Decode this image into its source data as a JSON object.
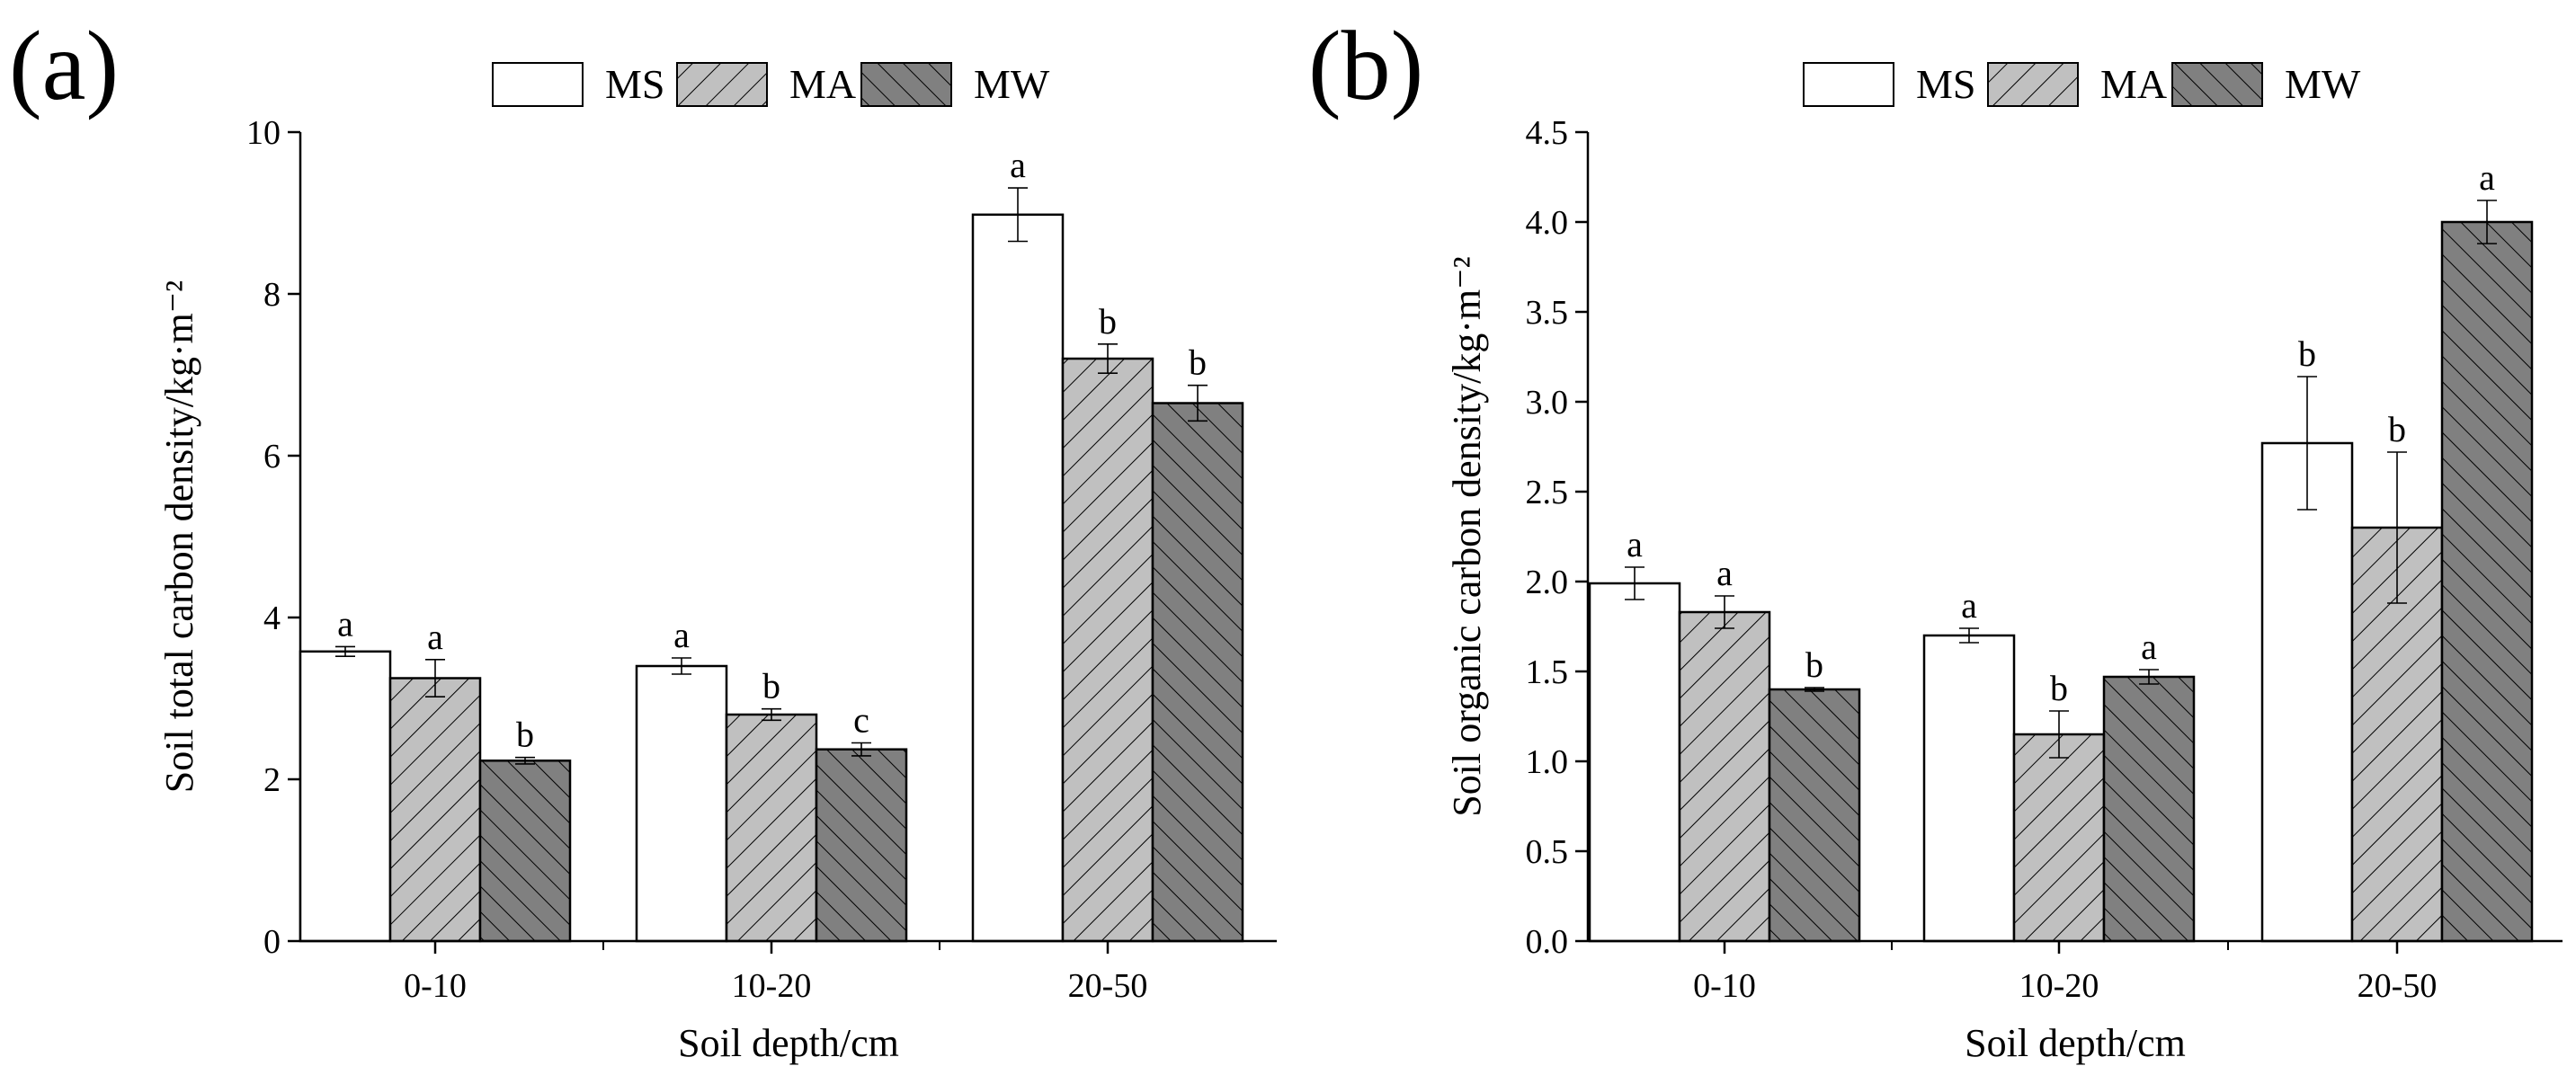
{
  "chart_data": [
    {
      "panel_label": "(a)",
      "type": "bar",
      "categories": [
        "0-10",
        "10-20",
        "20-50"
      ],
      "series": [
        {
          "name": "MS",
          "values": [
            3.58,
            3.4,
            8.98
          ],
          "errors": [
            0.06,
            0.1,
            0.33
          ],
          "labels": [
            "a",
            "a",
            "a"
          ]
        },
        {
          "name": "MA",
          "values": [
            3.25,
            2.8,
            7.2
          ],
          "errors": [
            0.23,
            0.07,
            0.18
          ],
          "labels": [
            "a",
            "b",
            "b"
          ]
        },
        {
          "name": "MW",
          "values": [
            2.23,
            2.37,
            6.65
          ],
          "errors": [
            0.04,
            0.08,
            0.22
          ],
          "labels": [
            "b",
            "c",
            "b"
          ]
        }
      ],
      "xlabel": "Soil depth/cm",
      "ylabel": "Soil total carbon density/kg·m⁻²",
      "ylim": [
        0,
        10
      ],
      "yticks": [
        "0",
        "2",
        "4",
        "6",
        "8",
        "10"
      ],
      "legend": [
        "MS",
        "MA",
        "MW"
      ],
      "legend_position": "top"
    },
    {
      "panel_label": "(b)",
      "type": "bar",
      "categories": [
        "0-10",
        "10-20",
        "20-50"
      ],
      "series": [
        {
          "name": "MS",
          "values": [
            1.99,
            1.7,
            2.77
          ],
          "errors": [
            0.09,
            0.04,
            0.37
          ],
          "labels": [
            "a",
            "a",
            "b"
          ]
        },
        {
          "name": "MA",
          "values": [
            1.83,
            1.15,
            2.3
          ],
          "errors": [
            0.09,
            0.13,
            0.42
          ],
          "labels": [
            "a",
            "b",
            "b"
          ]
        },
        {
          "name": "MW",
          "values": [
            1.4,
            1.47,
            4.0
          ],
          "errors": [
            0.01,
            0.04,
            0.12
          ],
          "labels": [
            "b",
            "a",
            "a"
          ]
        }
      ],
      "xlabel": "Soil depth/cm",
      "ylabel": "Soil organic carbon density/kg·m⁻²",
      "ylim": [
        0,
        4.5
      ],
      "yticks": [
        "0.0",
        "0.5",
        "1.0",
        "1.5",
        "2.0",
        "2.5",
        "3.0",
        "3.5",
        "4.0",
        "4.5"
      ],
      "legend": [
        "MS",
        "MA",
        "MW"
      ],
      "legend_position": "top"
    }
  ],
  "colors": {
    "MS": "#ffffff",
    "MA": "#c0c0c0",
    "MW": "#808080",
    "stroke": "#000000"
  }
}
